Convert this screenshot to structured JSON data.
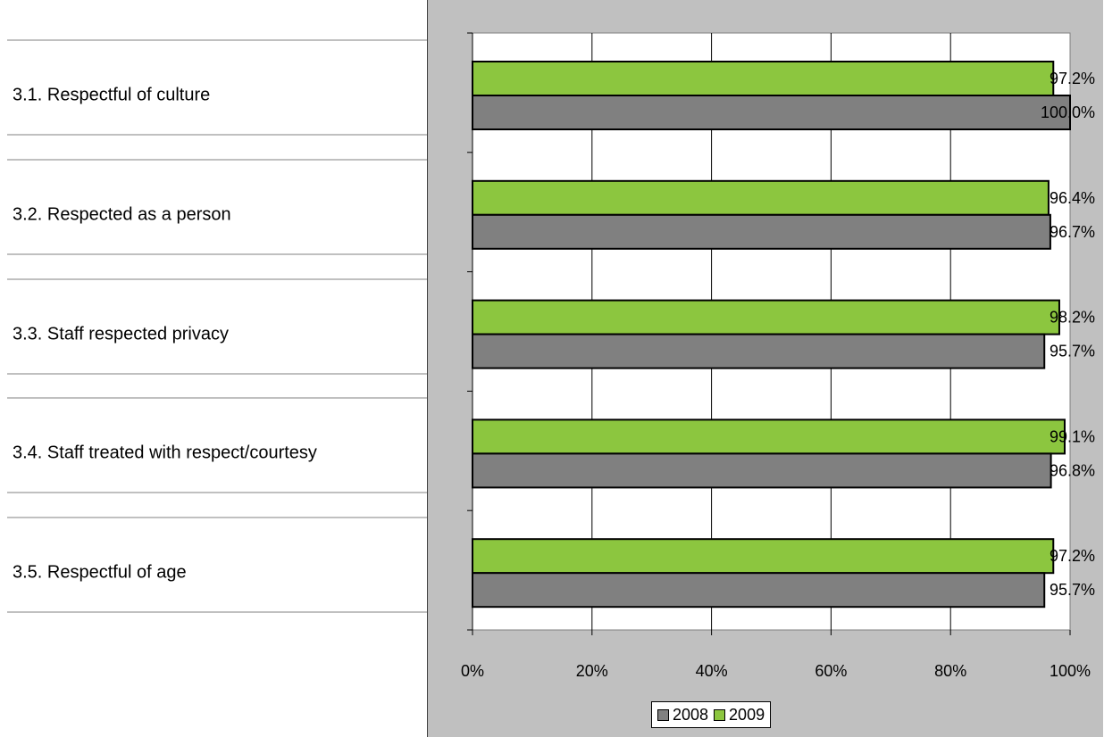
{
  "chart_data": {
    "type": "bar",
    "orientation": "horizontal",
    "categories": [
      "3.1. Respectful of culture",
      "3.2. Respected as a person",
      "3.3. Staff respected privacy",
      "3.4. Staff treated with respect/courtesy",
      "3.5. Respectful of age"
    ],
    "series": [
      {
        "name": "2009",
        "color": "#8cc63f",
        "values": [
          97.2,
          96.4,
          98.2,
          99.1,
          97.2
        ],
        "labels": [
          "97.2%",
          "96.4%",
          "98.2%",
          "99.1%",
          "97.2%"
        ]
      },
      {
        "name": "2008",
        "color": "#808080",
        "values": [
          100.0,
          96.7,
          95.7,
          96.8,
          95.7
        ],
        "labels": [
          "100.0%",
          "96.7%",
          "95.7%",
          "96.8%",
          "95.7%"
        ]
      }
    ],
    "xlim": [
      0,
      100
    ],
    "xticks": [
      "0%",
      "20%",
      "40%",
      "60%",
      "80%",
      "100%"
    ],
    "grid": true,
    "legend": {
      "position": "bottom",
      "entries": [
        {
          "name": "2008",
          "color": "#808080"
        },
        {
          "name": "2009",
          "color": "#8cc63f"
        }
      ]
    },
    "title": "",
    "xlabel": "",
    "ylabel": ""
  }
}
